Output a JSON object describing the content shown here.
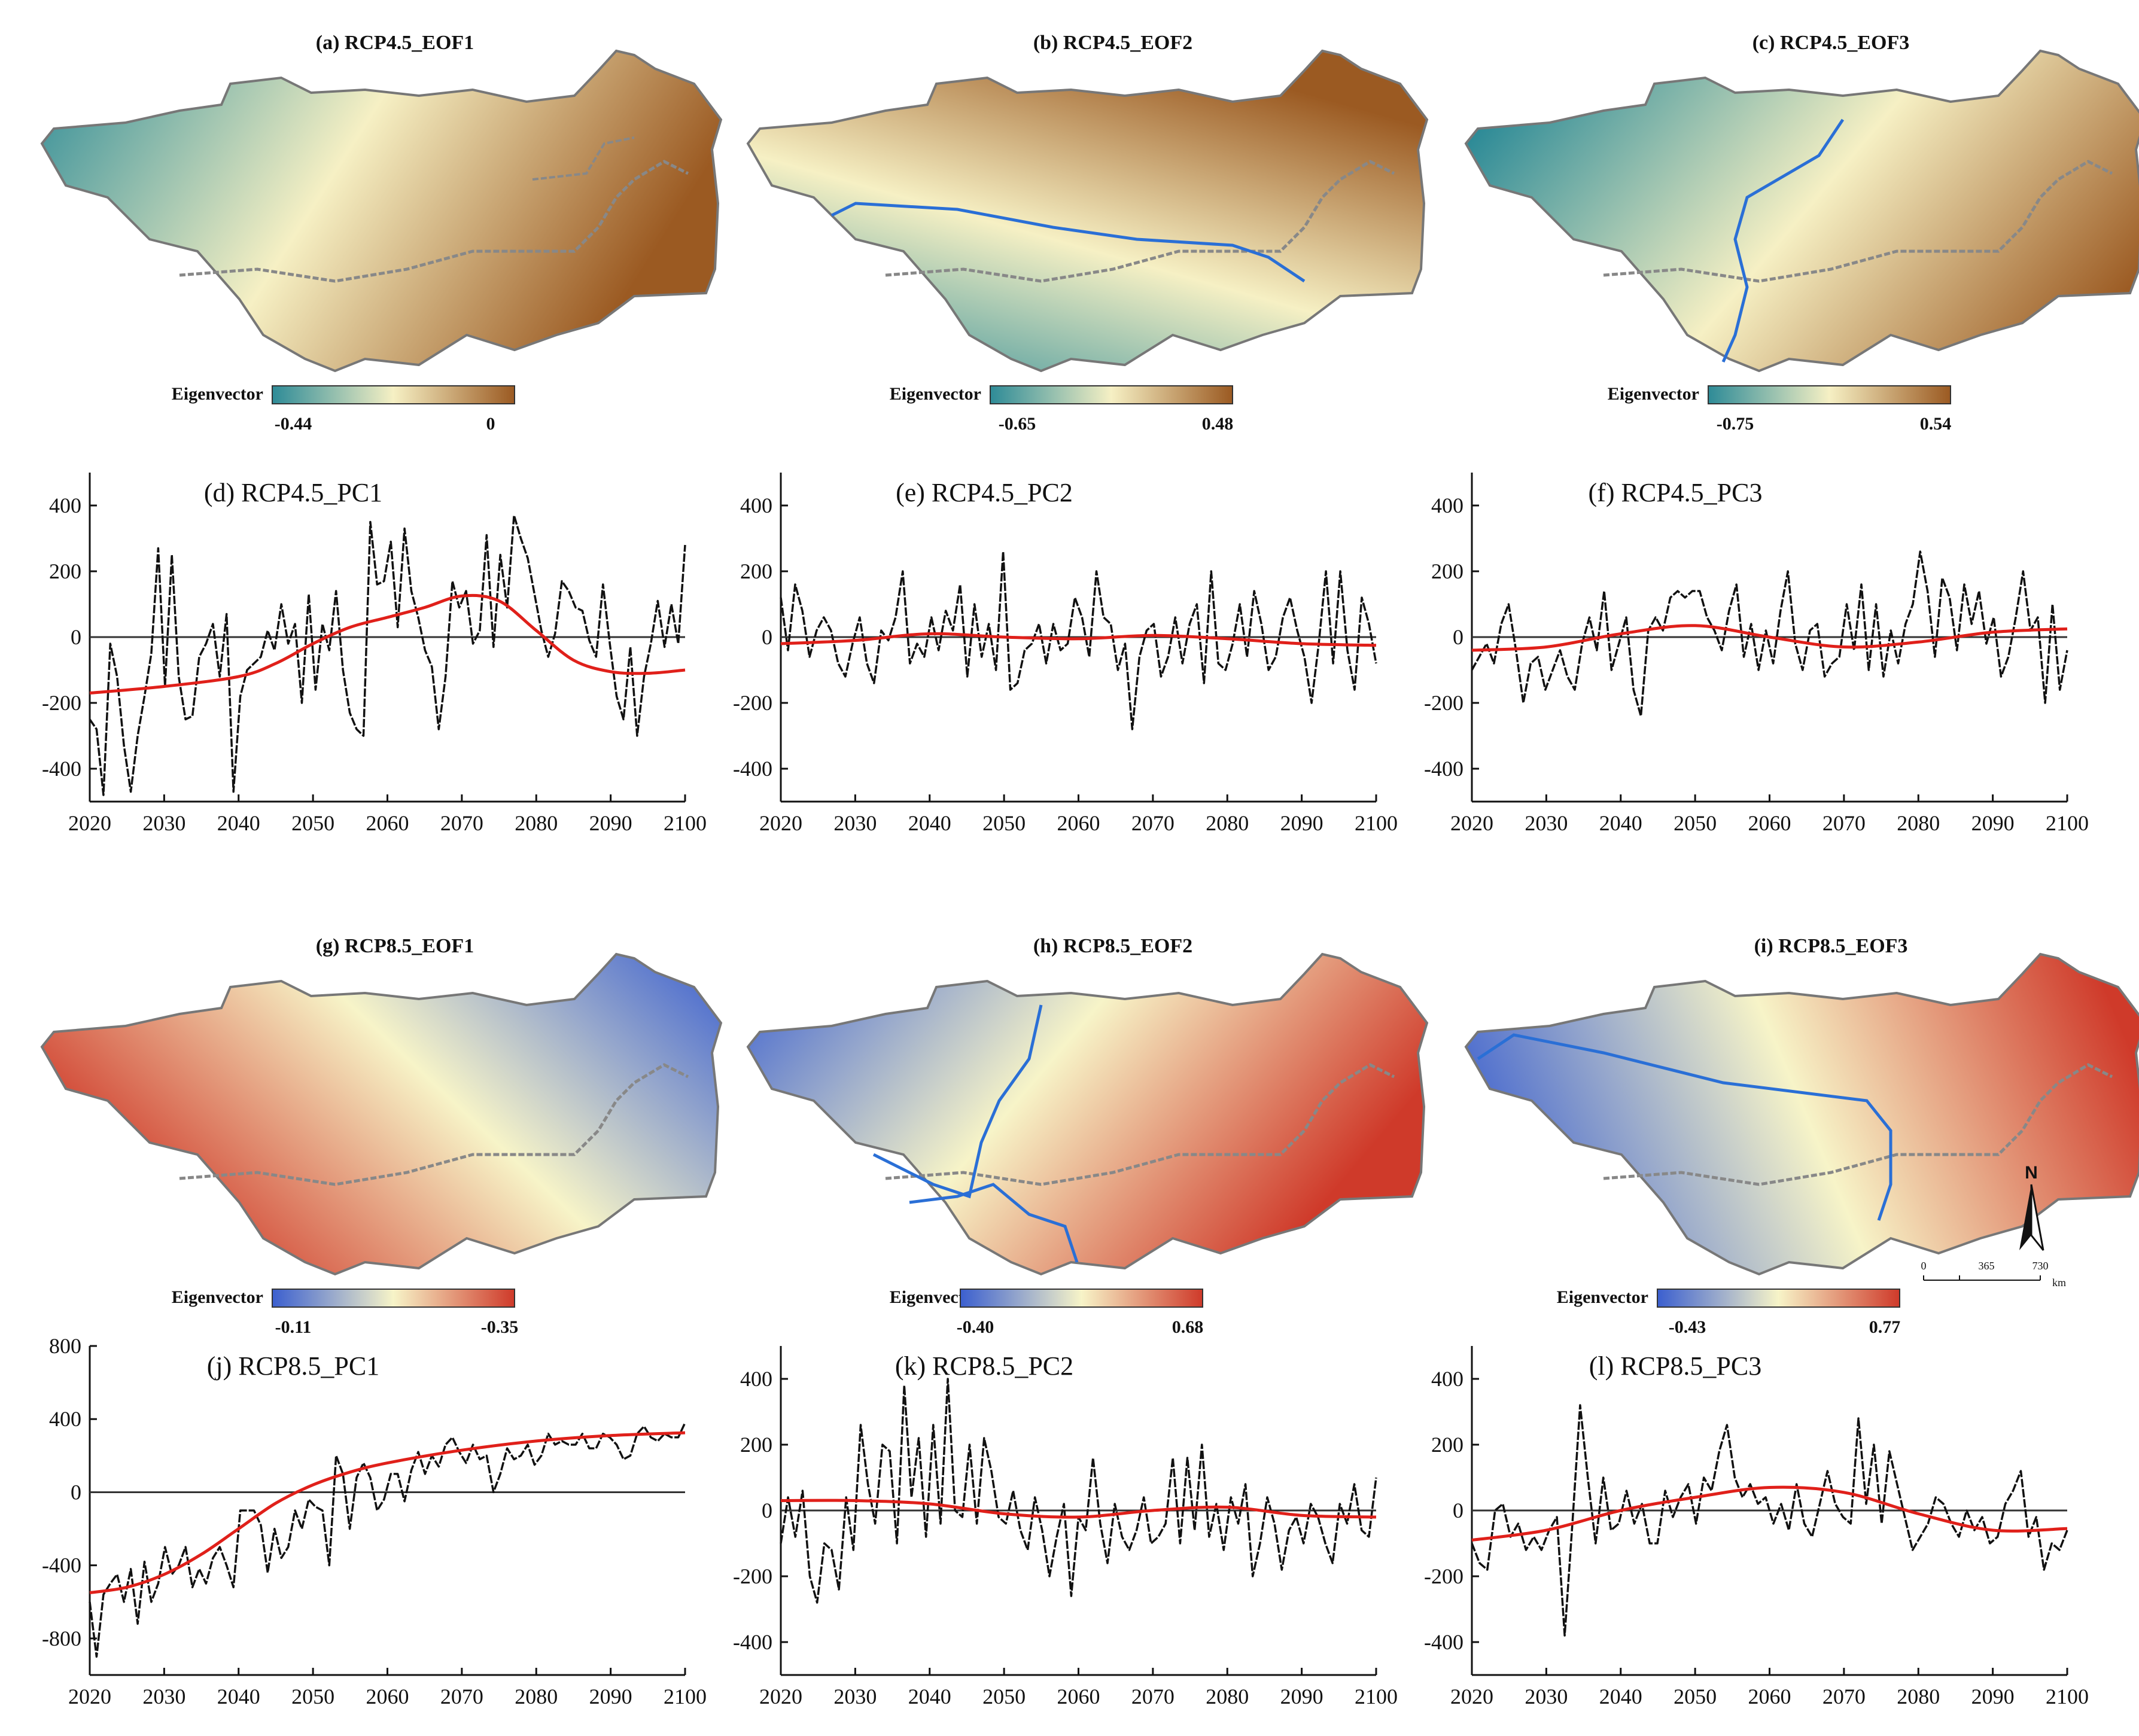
{
  "figure": {
    "eigenvector_label": "Eigenvector",
    "north_label": "N",
    "scale_ticks": [
      "0",
      "365",
      "730"
    ],
    "scale_unit": "km"
  },
  "maps": [
    {
      "title": "(a) RCP4.5_EOF1",
      "cb_min": "-0.44",
      "cb_max": "0",
      "colors": [
        "#2e8b97",
        "#f6f0c4",
        "#9b5a22"
      ]
    },
    {
      "title": "(b) RCP4.5_EOF2",
      "cb_min": "-0.65",
      "cb_max": "0.48",
      "colors": [
        "#2e8b97",
        "#f6f0c4",
        "#9b5a22"
      ]
    },
    {
      "title": "(c) RCP4.5_EOF3",
      "cb_min": "-0.75",
      "cb_max": "0.54",
      "colors": [
        "#2e8b97",
        "#f6f0c4",
        "#9b5a22"
      ]
    },
    {
      "title": "(g) RCP8.5_EOF1",
      "cb_min": "-0.11",
      "cb_max": "-0.35",
      "colors": [
        "#3b5fcf",
        "#f7f4c8",
        "#cf3a2a"
      ]
    },
    {
      "title": "(h) RCP8.5_EOF2",
      "cb_min": "-0.40",
      "cb_max": "0.68",
      "colors": [
        "#3b5fcf",
        "#f7f4c8",
        "#cf3a2a"
      ]
    },
    {
      "title": "(i) RCP8.5_EOF3",
      "cb_min": "-0.43",
      "cb_max": "0.77",
      "colors": [
        "#3b5fcf",
        "#f7f4c8",
        "#cf3a2a"
      ]
    }
  ],
  "chart_data": [
    {
      "type": "line",
      "title": "(d) RCP4.5_PC1",
      "xlim": [
        2020,
        2100
      ],
      "ylim": [
        -500,
        500
      ],
      "xticks": [
        2020,
        2030,
        2040,
        2050,
        2060,
        2070,
        2080,
        2090,
        2100
      ],
      "yticks": [
        -400,
        -200,
        0,
        200,
        400
      ],
      "series": [
        {
          "name": "PC1",
          "x_start": 2020,
          "values": [
            -250,
            -280,
            -480,
            -20,
            -120,
            -330,
            -470,
            -300,
            -180,
            -50,
            270,
            -150,
            250,
            -120,
            -250,
            -240,
            -60,
            -20,
            40,
            -120,
            70,
            -470,
            -180,
            -100,
            -80,
            -60,
            20,
            -40,
            100,
            -20,
            40,
            -200,
            130,
            -160,
            40,
            -40,
            140,
            -100,
            -230,
            -280,
            -300,
            350,
            160,
            170,
            290,
            30,
            330,
            140,
            60,
            -40,
            -90,
            -280,
            -120,
            170,
            90,
            140,
            -20,
            20,
            310,
            -30,
            250,
            90,
            370,
            300,
            240,
            130,
            20,
            -60,
            10,
            170,
            140,
            90,
            80,
            -10,
            -60,
            160,
            -20,
            -180,
            -250,
            -30,
            -300,
            -120,
            -20,
            110,
            -30,
            100,
            -20,
            280
          ]
        },
        {
          "name": "trend",
          "x": [
            2020,
            2030,
            2040,
            2045,
            2050,
            2055,
            2060,
            2065,
            2070,
            2075,
            2080,
            2085,
            2090,
            2095,
            2100
          ],
          "values": [
            -170,
            -150,
            -120,
            -80,
            -20,
            30,
            60,
            90,
            125,
            110,
            20,
            -70,
            -105,
            -110,
            -100
          ]
        }
      ]
    },
    {
      "type": "line",
      "title": "(e) RCP4.5_PC2",
      "xlim": [
        2020,
        2100
      ],
      "ylim": [
        -500,
        500
      ],
      "xticks": [
        2020,
        2030,
        2040,
        2050,
        2060,
        2070,
        2080,
        2090,
        2100
      ],
      "yticks": [
        -400,
        -200,
        0,
        200,
        400
      ],
      "series": [
        {
          "name": "PC2",
          "x_start": 2020,
          "values": [
            120,
            -40,
            160,
            80,
            -60,
            20,
            60,
            20,
            -80,
            -120,
            -20,
            60,
            -80,
            -140,
            20,
            -10,
            60,
            200,
            -80,
            -20,
            -60,
            60,
            -40,
            80,
            20,
            160,
            -120,
            100,
            -60,
            40,
            -100,
            260,
            -160,
            -140,
            -40,
            -20,
            40,
            -80,
            40,
            -40,
            -20,
            120,
            60,
            -60,
            200,
            60,
            40,
            -100,
            -20,
            -280,
            -60,
            20,
            40,
            -120,
            -60,
            60,
            -80,
            40,
            100,
            -140,
            200,
            -80,
            -100,
            -20,
            100,
            -60,
            140,
            40,
            -100,
            -60,
            60,
            120,
            20,
            -60,
            -200,
            -20,
            200,
            -80,
            200,
            -40,
            -160,
            120,
            40,
            -80
          ]
        },
        {
          "name": "trend",
          "x": [
            2020,
            2030,
            2040,
            2050,
            2060,
            2070,
            2080,
            2090,
            2100
          ],
          "values": [
            -20,
            -10,
            10,
            0,
            -5,
            5,
            -5,
            -20,
            -25
          ]
        }
      ]
    },
    {
      "type": "line",
      "title": "(f) RCP4.5_PC3",
      "xlim": [
        2020,
        2100
      ],
      "ylim": [
        -500,
        500
      ],
      "xticks": [
        2020,
        2030,
        2040,
        2050,
        2060,
        2070,
        2080,
        2090,
        2100
      ],
      "yticks": [
        -400,
        -200,
        0,
        200,
        400
      ],
      "series": [
        {
          "name": "PC3",
          "x_start": 2020,
          "values": [
            -100,
            -60,
            -20,
            -80,
            40,
            100,
            -40,
            -200,
            -80,
            -60,
            -160,
            -100,
            -40,
            -120,
            -160,
            -20,
            60,
            -40,
            140,
            -100,
            -20,
            60,
            -160,
            -240,
            20,
            60,
            20,
            120,
            140,
            120,
            140,
            140,
            60,
            20,
            -40,
            80,
            160,
            -60,
            40,
            -100,
            20,
            -80,
            80,
            200,
            -20,
            -100,
            20,
            40,
            -120,
            -80,
            -60,
            100,
            -40,
            160,
            -100,
            100,
            -120,
            20,
            -80,
            40,
            100,
            260,
            140,
            -60,
            180,
            120,
            -40,
            160,
            40,
            140,
            -20,
            60,
            -120,
            -60,
            60,
            200,
            20,
            60,
            -200,
            100,
            -160,
            -40
          ]
        },
        {
          "name": "trend",
          "x": [
            2020,
            2030,
            2040,
            2050,
            2060,
            2070,
            2080,
            2090,
            2100
          ],
          "values": [
            -40,
            -30,
            10,
            35,
            0,
            -30,
            -15,
            15,
            25
          ]
        }
      ]
    },
    {
      "type": "line",
      "title": "(j) RCP8.5_PC1",
      "xlim": [
        2020,
        2100
      ],
      "ylim": [
        -1000,
        800
      ],
      "xticks": [
        2020,
        2030,
        2040,
        2050,
        2060,
        2070,
        2080,
        2090,
        2100
      ],
      "yticks": [
        -800,
        -400,
        0,
        400,
        800
      ],
      "series": [
        {
          "name": "PC1",
          "x_start": 2020,
          "values": [
            -600,
            -900,
            -560,
            -500,
            -450,
            -600,
            -420,
            -720,
            -380,
            -600,
            -500,
            -300,
            -450,
            -400,
            -300,
            -520,
            -420,
            -500,
            -360,
            -300,
            -400,
            -520,
            -100,
            -100,
            -100,
            -180,
            -440,
            -200,
            -360,
            -300,
            -100,
            -200,
            -40,
            -80,
            -100,
            -400,
            200,
            100,
            -200,
            80,
            160,
            80,
            -100,
            -40,
            100,
            100,
            -50,
            120,
            220,
            100,
            200,
            140,
            260,
            300,
            220,
            160,
            260,
            180,
            200,
            0,
            100,
            240,
            180,
            200,
            260,
            150,
            200,
            320,
            260,
            280,
            260,
            260,
            320,
            240,
            240,
            320,
            300,
            260,
            180,
            200,
            320,
            360,
            300,
            280,
            320,
            300,
            300,
            380
          ]
        },
        {
          "name": "trend",
          "x": [
            2020,
            2025,
            2030,
            2035,
            2040,
            2045,
            2050,
            2055,
            2060,
            2070,
            2080,
            2090,
            2100
          ],
          "values": [
            -550,
            -520,
            -450,
            -340,
            -200,
            -60,
            40,
            110,
            160,
            230,
            280,
            310,
            325
          ]
        }
      ]
    },
    {
      "type": "line",
      "title": "(k) RCP8.5_PC2",
      "xlim": [
        2020,
        2100
      ],
      "ylim": [
        -500,
        500
      ],
      "xticks": [
        2020,
        2030,
        2040,
        2050,
        2060,
        2070,
        2080,
        2090,
        2100
      ],
      "yticks": [
        -400,
        -200,
        0,
        200,
        400
      ],
      "series": [
        {
          "name": "PC2",
          "x_start": 2020,
          "values": [
            -100,
            40,
            -80,
            60,
            -200,
            -280,
            -100,
            -120,
            -240,
            40,
            -120,
            260,
            80,
            -40,
            200,
            180,
            -100,
            380,
            40,
            220,
            -80,
            260,
            -40,
            400,
            0,
            -20,
            200,
            -40,
            220,
            120,
            -20,
            -40,
            60,
            -60,
            -120,
            40,
            -60,
            -200,
            -80,
            20,
            -260,
            -20,
            -60,
            160,
            -40,
            -160,
            20,
            -80,
            -120,
            -60,
            40,
            -100,
            -80,
            -40,
            160,
            -100,
            160,
            -60,
            200,
            -80,
            20,
            -120,
            40,
            -40,
            80,
            -200,
            -100,
            40,
            -40,
            -180,
            -60,
            -20,
            -100,
            20,
            -20,
            -100,
            -160,
            20,
            -40,
            80,
            -60,
            -80,
            100
          ]
        },
        {
          "name": "trend",
          "x": [
            2020,
            2030,
            2040,
            2050,
            2060,
            2070,
            2080,
            2090,
            2100
          ],
          "values": [
            30,
            30,
            20,
            -10,
            -20,
            0,
            10,
            -15,
            -20
          ]
        }
      ]
    },
    {
      "type": "line",
      "title": "(l) RCP8.5_PC3",
      "xlim": [
        2020,
        2100
      ],
      "ylim": [
        -500,
        500
      ],
      "xticks": [
        2020,
        2030,
        2040,
        2050,
        2060,
        2070,
        2080,
        2090,
        2100
      ],
      "yticks": [
        -400,
        -200,
        0,
        200,
        400
      ],
      "series": [
        {
          "name": "PC3",
          "x_start": 2020,
          "values": [
            -100,
            -160,
            -180,
            0,
            20,
            -80,
            -40,
            -120,
            -80,
            -120,
            -60,
            -20,
            -380,
            -40,
            320,
            100,
            -100,
            100,
            -60,
            -40,
            60,
            -40,
            20,
            -100,
            -100,
            60,
            -20,
            40,
            80,
            -40,
            100,
            60,
            180,
            260,
            100,
            40,
            80,
            20,
            40,
            -40,
            20,
            -60,
            80,
            -40,
            -80,
            20,
            120,
            20,
            -20,
            -40,
            280,
            20,
            200,
            -40,
            180,
            80,
            -20,
            -120,
            -80,
            -40,
            40,
            20,
            -40,
            -80,
            0,
            -60,
            -20,
            -100,
            -80,
            20,
            60,
            120,
            -80,
            -20,
            -180,
            -100,
            -120,
            -60
          ]
        },
        {
          "name": "trend",
          "x": [
            2020,
            2030,
            2040,
            2050,
            2060,
            2070,
            2080,
            2090,
            2100
          ],
          "values": [
            -90,
            -60,
            0,
            40,
            70,
            55,
            -10,
            -60,
            -55
          ]
        }
      ]
    }
  ]
}
